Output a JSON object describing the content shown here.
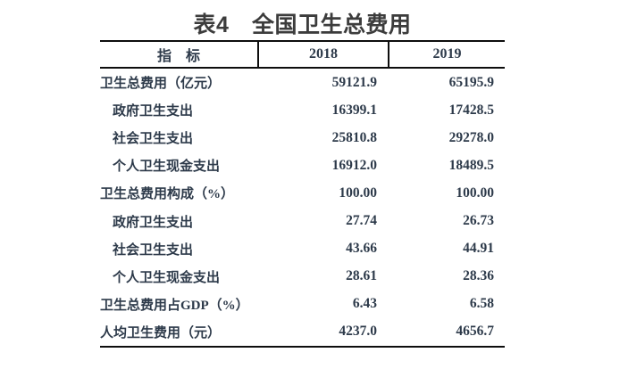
{
  "title": "表4　全国卫生总费用",
  "colors": {
    "body_text": "#2d3a4a",
    "title_text": "#3c3c3c",
    "border": "#0d0d0d"
  },
  "table": {
    "columns": [
      "指　标",
      "2018",
      "2019"
    ],
    "rows": [
      {
        "label": "卫生总费用（亿元）",
        "indent": false,
        "v2018": "59121.9",
        "v2019": "65195.9"
      },
      {
        "label": "政府卫生支出",
        "indent": true,
        "v2018": "16399.1",
        "v2019": "17428.5"
      },
      {
        "label": "社会卫生支出",
        "indent": true,
        "v2018": "25810.8",
        "v2019": "29278.0"
      },
      {
        "label": "个人卫生现金支出",
        "indent": true,
        "v2018": "16912.0",
        "v2019": "18489.5"
      },
      {
        "label": "卫生总费用构成（%）",
        "indent": false,
        "v2018": "100.00",
        "v2019": "100.00"
      },
      {
        "label": "政府卫生支出",
        "indent": true,
        "v2018": "27.74",
        "v2019": "26.73"
      },
      {
        "label": "社会卫生支出",
        "indent": true,
        "v2018": "43.66",
        "v2019": "44.91"
      },
      {
        "label": "个人卫生现金支出",
        "indent": true,
        "v2018": "28.61",
        "v2019": "28.36"
      },
      {
        "label": "卫生总费用占GDP（%）",
        "indent": false,
        "v2018": "6.43",
        "v2019": "6.58"
      },
      {
        "label": "人均卫生费用（元）",
        "indent": false,
        "v2018": "4237.0",
        "v2019": "4656.7"
      }
    ]
  }
}
